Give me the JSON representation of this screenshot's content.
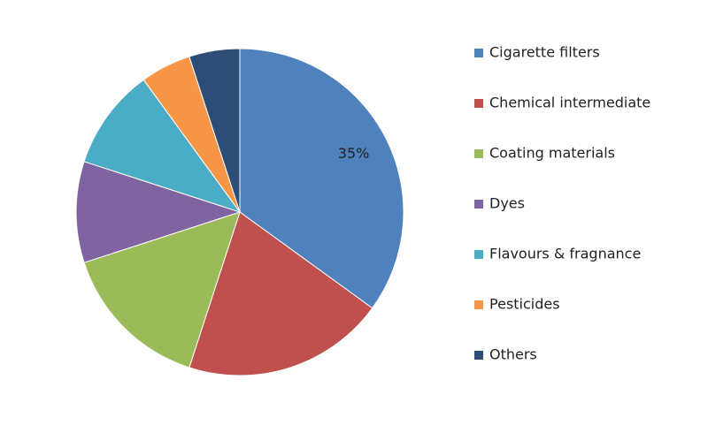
{
  "chart_data": {
    "type": "pie",
    "categories": [
      "Cigarette filters",
      "Chemical intermediate",
      "Coating materials",
      "Dyes",
      "Flavours & fragnance",
      "Pesticides",
      "Others"
    ],
    "values": [
      35,
      20,
      15,
      10,
      10,
      5,
      5
    ],
    "value_labels": [
      "35%",
      null,
      null,
      null,
      null,
      null,
      null
    ],
    "colors": [
      "#4f81bd",
      "#c0504d",
      "#9bbb59",
      "#8064a2",
      "#4bacc6",
      "#f79646",
      "#2c4d75"
    ],
    "legend": "right"
  }
}
